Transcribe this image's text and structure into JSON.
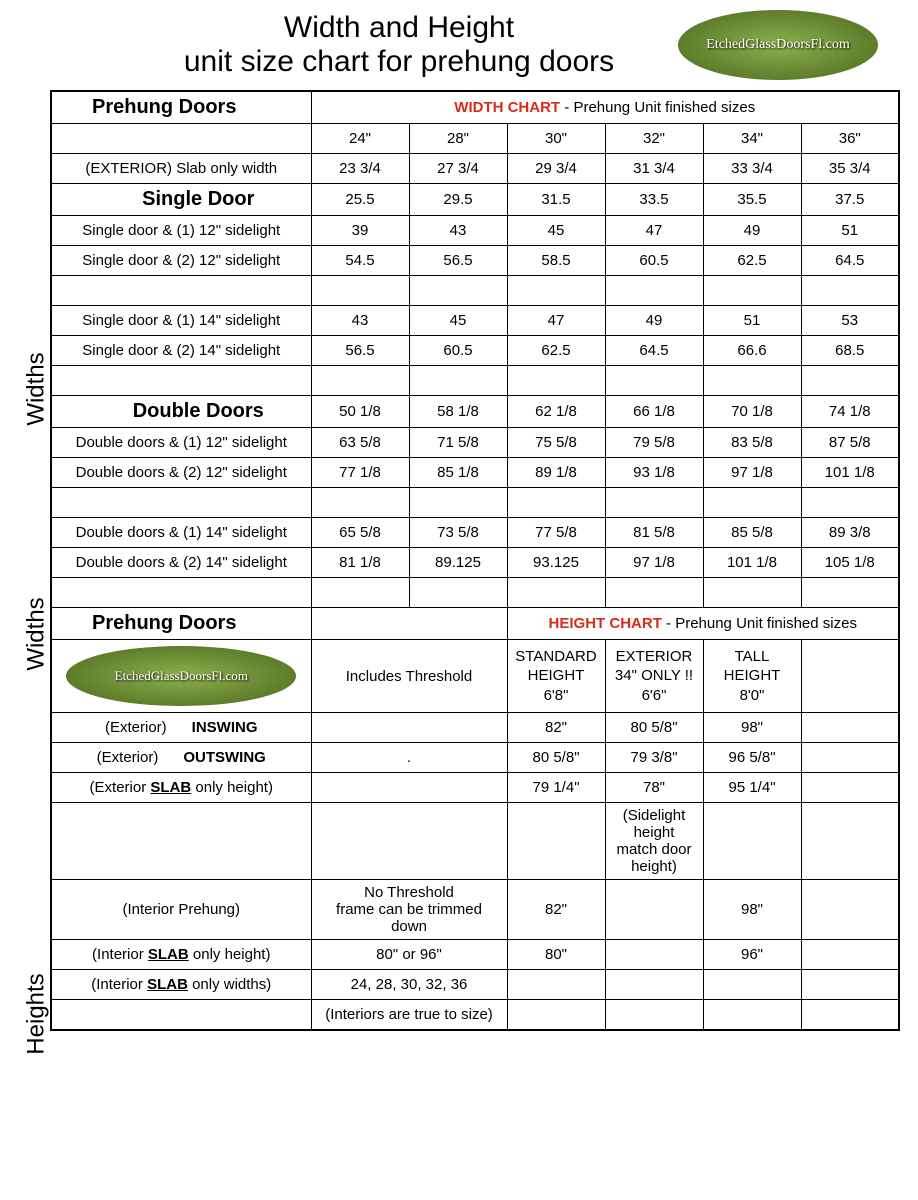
{
  "title": {
    "line1": "Width and Height",
    "line2": "unit size chart for prehung doors"
  },
  "logo_text": "EtchedGlassDoorsFl.com",
  "side_labels": {
    "widths": "Widths",
    "heights": "Heights"
  },
  "width_chart": {
    "section_label": "Prehung Doors",
    "chart_label_red": "WIDTH CHART",
    "chart_label_rest": " - Prehung Unit finished sizes",
    "columns": [
      "24\"",
      "28\"",
      "30\"",
      "32\"",
      "34\"",
      "36\""
    ],
    "rows": [
      {
        "label": "(EXTERIOR)  Slab only width",
        "vals": [
          "23 3/4",
          "27 3/4",
          "29 3/4",
          "31 3/4",
          "33 3/4",
          "35 3/4"
        ],
        "label_align": "center"
      },
      {
        "label": "Single Door",
        "vals": [
          "25.5",
          "29.5",
          "31.5",
          "33.5",
          "35.5",
          "37.5"
        ],
        "bold": true,
        "big": true
      },
      {
        "label": "Single door & (1) 12\" sidelight",
        "vals": [
          "39",
          "43",
          "45",
          "47",
          "49",
          "51"
        ]
      },
      {
        "label": "Single door & (2) 12\" sidelight",
        "vals": [
          "54.5",
          "56.5",
          "58.5",
          "60.5",
          "62.5",
          "64.5"
        ]
      },
      {
        "label": "",
        "vals": [
          "",
          "",
          "",
          "",
          "",
          ""
        ],
        "thin": true
      },
      {
        "label": "Single door & (1) 14\" sidelight",
        "vals": [
          "43",
          "45",
          "47",
          "49",
          "51",
          "53"
        ]
      },
      {
        "label": "Single door & (2) 14\" sidelight",
        "vals": [
          "56.5",
          "60.5",
          "62.5",
          "64.5",
          "66.6",
          "68.5"
        ]
      },
      {
        "label": "",
        "vals": [
          "",
          "",
          "",
          "",
          "",
          ""
        ],
        "thin": true
      },
      {
        "label": "Double Doors",
        "vals": [
          "50 1/8",
          "58 1/8",
          "62 1/8",
          "66 1/8",
          "70 1/8",
          "74 1/8"
        ],
        "bold": true,
        "big": true
      },
      {
        "label": "Double doors & (1) 12\" sidelight",
        "vals": [
          "63 5/8",
          "71 5/8",
          "75 5/8",
          "79 5/8",
          "83 5/8",
          "87 5/8"
        ]
      },
      {
        "label": "Double doors & (2) 12\" sidelight",
        "vals": [
          "77 1/8",
          "85 1/8",
          "89 1/8",
          "93 1/8",
          "97 1/8",
          "101 1/8"
        ]
      },
      {
        "label": "",
        "vals": [
          "",
          "",
          "",
          "",
          "",
          ""
        ],
        "thin": true
      },
      {
        "label": "Double doors & (1) 14\" sidelight",
        "vals": [
          "65 5/8",
          "73 5/8",
          "77 5/8",
          "81 5/8",
          "85 5/8",
          "89 3/8"
        ]
      },
      {
        "label": "Double doors & (2) 14\" sidelight",
        "vals": [
          "81 1/8",
          "89.125",
          "93.125",
          "97 1/8",
          "101 1/8",
          "105 1/8"
        ]
      },
      {
        "label": "",
        "vals": [
          "",
          "",
          "",
          "",
          "",
          ""
        ],
        "thin": true
      }
    ]
  },
  "height_chart": {
    "section_label": "Prehung Doors",
    "chart_label_red": "HEIGHT CHART",
    "chart_label_rest": " - Prehung Unit finished sizes",
    "col1_note": "Includes Threshold",
    "columns": [
      {
        "l1": "STANDARD",
        "l2": "HEIGHT",
        "l3": "6'8\""
      },
      {
        "l1": "EXTERIOR",
        "l2": "34\" ONLY !!",
        "l3": "6'6\""
      },
      {
        "l1": "TALL",
        "l2": "HEIGHT",
        "l3": "8'0\""
      }
    ],
    "rows": [
      {
        "label_pre": "(Exterior)",
        "label_bold": "INSWING",
        "c1": "",
        "c2": "82\"",
        "c3": "80 5/8\"",
        "c4": "98\"",
        "c5": ""
      },
      {
        "label_pre": "(Exterior)",
        "label_bold": "OUTSWING",
        "c1": ".",
        "c2": "80 5/8\"",
        "c3": "79 3/8\"",
        "c4": "96 5/8\"",
        "c5": ""
      },
      {
        "label_html": "(Exterior <b><u>SLAB</u></b> only height)",
        "c1": "",
        "c2": "79 1/4\"",
        "c3": "78\"",
        "c4": "95 1/4\"",
        "c5": ""
      },
      {
        "label": "",
        "c1": "",
        "c2": "",
        "c3_note": "(Sidelight height match door height)",
        "c4": "",
        "c5": ""
      },
      {
        "label_center": "(Interior  Prehung)",
        "c1_note": "No Threshold\nframe can be trimmed down",
        "c2": "82\"",
        "c3": "",
        "c4": "98\"",
        "c5": ""
      },
      {
        "label_html": "(Interior <b><u>SLAB</u></b> only height)",
        "c1": "80\"   or   96\"",
        "c2": "80\"",
        "c3": "",
        "c4": "96\"",
        "c5": ""
      },
      {
        "label_html": "(Interior <b><u>SLAB</u></b> only widths)",
        "c1": "24, 28, 30, 32, 36",
        "c2": "",
        "c3": "",
        "c4": "",
        "c5": ""
      },
      {
        "label": "",
        "c1_note": "(Interiors are true to size)",
        "c2": "",
        "c3": "",
        "c4": "",
        "c5": ""
      }
    ]
  }
}
